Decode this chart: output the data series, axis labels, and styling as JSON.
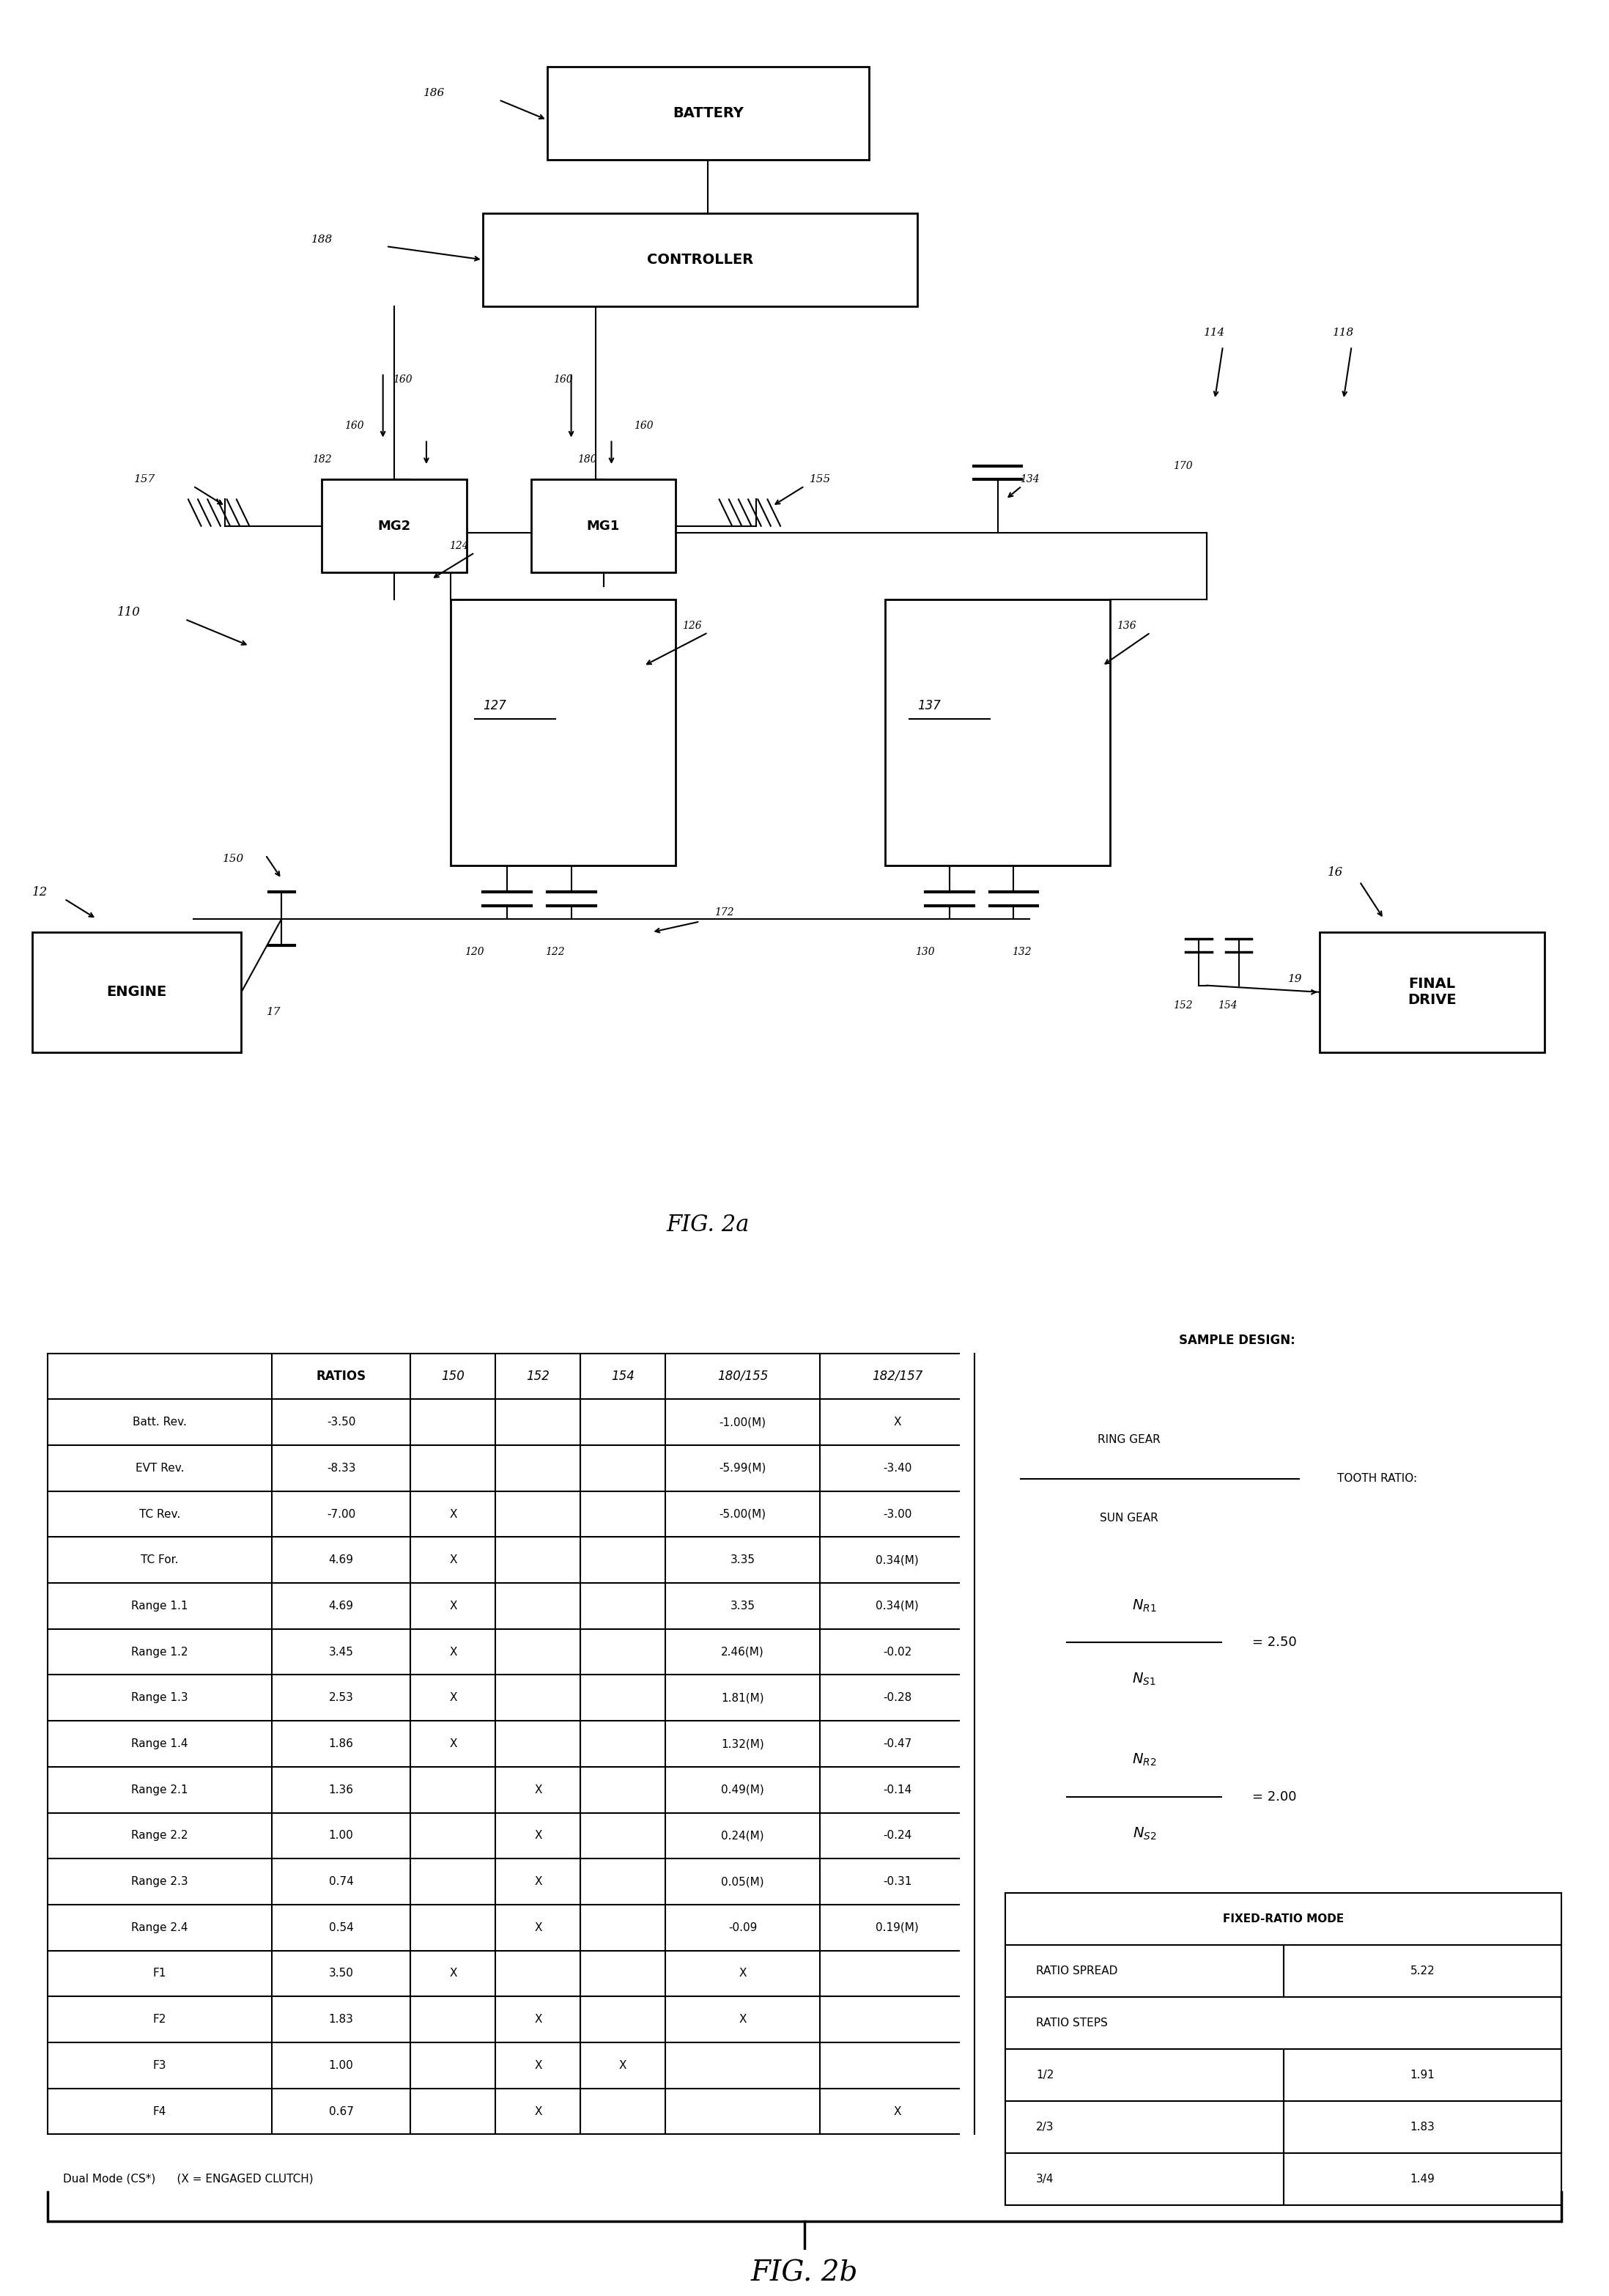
{
  "fig_width": 21.96,
  "fig_height": 31.33,
  "bg_color": "#ffffff",
  "table_data": {
    "headers": [
      "",
      "RATIOS",
      "150",
      "152",
      "154",
      "180/155",
      "182/157"
    ],
    "rows": [
      [
        "Batt. Rev.",
        "-3.50",
        "",
        "",
        "",
        "-1.00(M)",
        "X"
      ],
      [
        "EVT Rev.",
        "-8.33",
        "",
        "",
        "",
        "-5.99(M)",
        "-3.40"
      ],
      [
        "TC Rev.",
        "-7.00",
        "X",
        "",
        "",
        "-5.00(M)",
        "-3.00"
      ],
      [
        "TC For.",
        "4.69",
        "X",
        "",
        "",
        "3.35",
        "0.34(M)"
      ],
      [
        "Range 1.1",
        "4.69",
        "X",
        "",
        "",
        "3.35",
        "0.34(M)"
      ],
      [
        "Range 1.2",
        "3.45",
        "X",
        "",
        "",
        "2.46(M)",
        "-0.02"
      ],
      [
        "Range 1.3",
        "2.53",
        "X",
        "",
        "",
        "1.81(M)",
        "-0.28"
      ],
      [
        "Range 1.4",
        "1.86",
        "X",
        "",
        "",
        "1.32(M)",
        "-0.47"
      ],
      [
        "Range 2.1",
        "1.36",
        "",
        "X",
        "",
        "0.49(M)",
        "-0.14"
      ],
      [
        "Range 2.2",
        "1.00",
        "",
        "X",
        "",
        "0.24(M)",
        "-0.24"
      ],
      [
        "Range 2.3",
        "0.74",
        "",
        "X",
        "",
        "0.05(M)",
        "-0.31"
      ],
      [
        "Range 2.4",
        "0.54",
        "",
        "X",
        "",
        "-0.09",
        "0.19(M)"
      ],
      [
        "F1",
        "3.50",
        "X",
        "",
        "",
        "X",
        ""
      ],
      [
        "F2",
        "1.83",
        "",
        "X",
        "",
        "X",
        ""
      ],
      [
        "F3",
        "1.00",
        "",
        "X",
        "X",
        "",
        ""
      ],
      [
        "F4",
        "0.67",
        "",
        "X",
        "",
        "",
        "X"
      ]
    ]
  },
  "fixed_ratio_table": {
    "headers": [
      "FIXED-RATIO MODE",
      ""
    ],
    "rows": [
      [
        "RATIO SPREAD",
        "5.22"
      ],
      [
        "RATIO STEPS",
        ""
      ],
      [
        "1/2",
        "1.91"
      ],
      [
        "2/3",
        "1.83"
      ],
      [
        "3/4",
        "1.49"
      ]
    ]
  },
  "fig2a_label": "FIG. 2a",
  "fig2b_label": "FIG. 2b",
  "dual_mode_text": "Dual Mode (CS*)      (X = ENGAGED CLUTCH)"
}
